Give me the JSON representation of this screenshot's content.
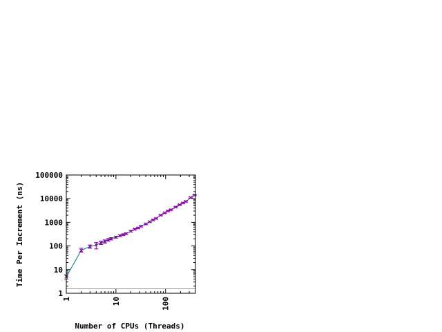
{
  "chart_data": {
    "type": "line",
    "title": "",
    "xlabel": "Number of CPUs (Threads)",
    "ylabel": "Time Per Increment (ns)",
    "xscale": "log",
    "yscale": "log",
    "xlim": [
      1,
      400
    ],
    "ylim": [
      1,
      100000
    ],
    "grid": false,
    "legend": "none",
    "x_ticks": [
      {
        "value": 1,
        "label": "1"
      },
      {
        "value": 10,
        "label": "10"
      },
      {
        "value": 100,
        "label": "100"
      }
    ],
    "y_ticks": [
      {
        "value": 1,
        "label": "1"
      },
      {
        "value": 10,
        "label": "10"
      },
      {
        "value": 100,
        "label": "100"
      },
      {
        "value": 1000,
        "label": "1000"
      },
      {
        "value": 10000,
        "label": "10000"
      },
      {
        "value": 100000,
        "label": "100000"
      }
    ],
    "series": [
      {
        "color": "#008060",
        "marker": "errorbar",
        "marker_color": "#8000a0",
        "points": [
          {
            "x": 1,
            "y": 5,
            "ylow": 4,
            "yhigh": 6
          },
          {
            "x": 2,
            "y": 65,
            "ylow": 55,
            "yhigh": 80
          },
          {
            "x": 3,
            "y": 95,
            "ylow": 80,
            "yhigh": 110
          },
          {
            "x": 4,
            "y": 110,
            "ylow": 75,
            "yhigh": 140
          },
          {
            "x": 5,
            "y": 135,
            "ylow": 115,
            "yhigh": 160
          },
          {
            "x": 6,
            "y": 155,
            "ylow": 130,
            "yhigh": 180
          },
          {
            "x": 7,
            "y": 180,
            "ylow": 160,
            "yhigh": 205
          },
          {
            "x": 8,
            "y": 200,
            "ylow": 180,
            "yhigh": 225
          },
          {
            "x": 10,
            "y": 235,
            "ylow": 215,
            "yhigh": 260
          },
          {
            "x": 12,
            "y": 270,
            "ylow": 250,
            "yhigh": 295
          },
          {
            "x": 14,
            "y": 300,
            "ylow": 280,
            "yhigh": 325
          },
          {
            "x": 16,
            "y": 330,
            "ylow": 310,
            "yhigh": 355
          },
          {
            "x": 20,
            "y": 420,
            "ylow": 390,
            "yhigh": 450
          },
          {
            "x": 24,
            "y": 510,
            "ylow": 480,
            "yhigh": 545
          },
          {
            "x": 28,
            "y": 580,
            "ylow": 550,
            "yhigh": 615
          },
          {
            "x": 32,
            "y": 680,
            "ylow": 640,
            "yhigh": 720
          },
          {
            "x": 40,
            "y": 850,
            "ylow": 800,
            "yhigh": 900
          },
          {
            "x": 48,
            "y": 1050,
            "ylow": 990,
            "yhigh": 1110
          },
          {
            "x": 56,
            "y": 1250,
            "ylow": 1180,
            "yhigh": 1320
          },
          {
            "x": 64,
            "y": 1450,
            "ylow": 1370,
            "yhigh": 1530
          },
          {
            "x": 80,
            "y": 2000,
            "ylow": 1900,
            "yhigh": 2100
          },
          {
            "x": 96,
            "y": 2500,
            "ylow": 2380,
            "yhigh": 2630
          },
          {
            "x": 112,
            "y": 3000,
            "ylow": 2850,
            "yhigh": 3150
          },
          {
            "x": 128,
            "y": 3400,
            "ylow": 3230,
            "yhigh": 3570
          },
          {
            "x": 160,
            "y": 4400,
            "ylow": 4180,
            "yhigh": 4620
          },
          {
            "x": 192,
            "y": 5500,
            "ylow": 5230,
            "yhigh": 5780
          },
          {
            "x": 224,
            "y": 6600,
            "ylow": 6270,
            "yhigh": 6930
          },
          {
            "x": 256,
            "y": 7600,
            "ylow": 7220,
            "yhigh": 7980
          },
          {
            "x": 320,
            "y": 11000,
            "ylow": 10450,
            "yhigh": 11550
          },
          {
            "x": 384,
            "y": 14000,
            "ylow": 13300,
            "yhigh": 14700
          }
        ]
      },
      {
        "color": "#40c0d0",
        "marker": "none",
        "points": [
          {
            "x": 1,
            "y": 1.55
          },
          {
            "x": 400,
            "y": 1.55
          }
        ]
      }
    ]
  }
}
